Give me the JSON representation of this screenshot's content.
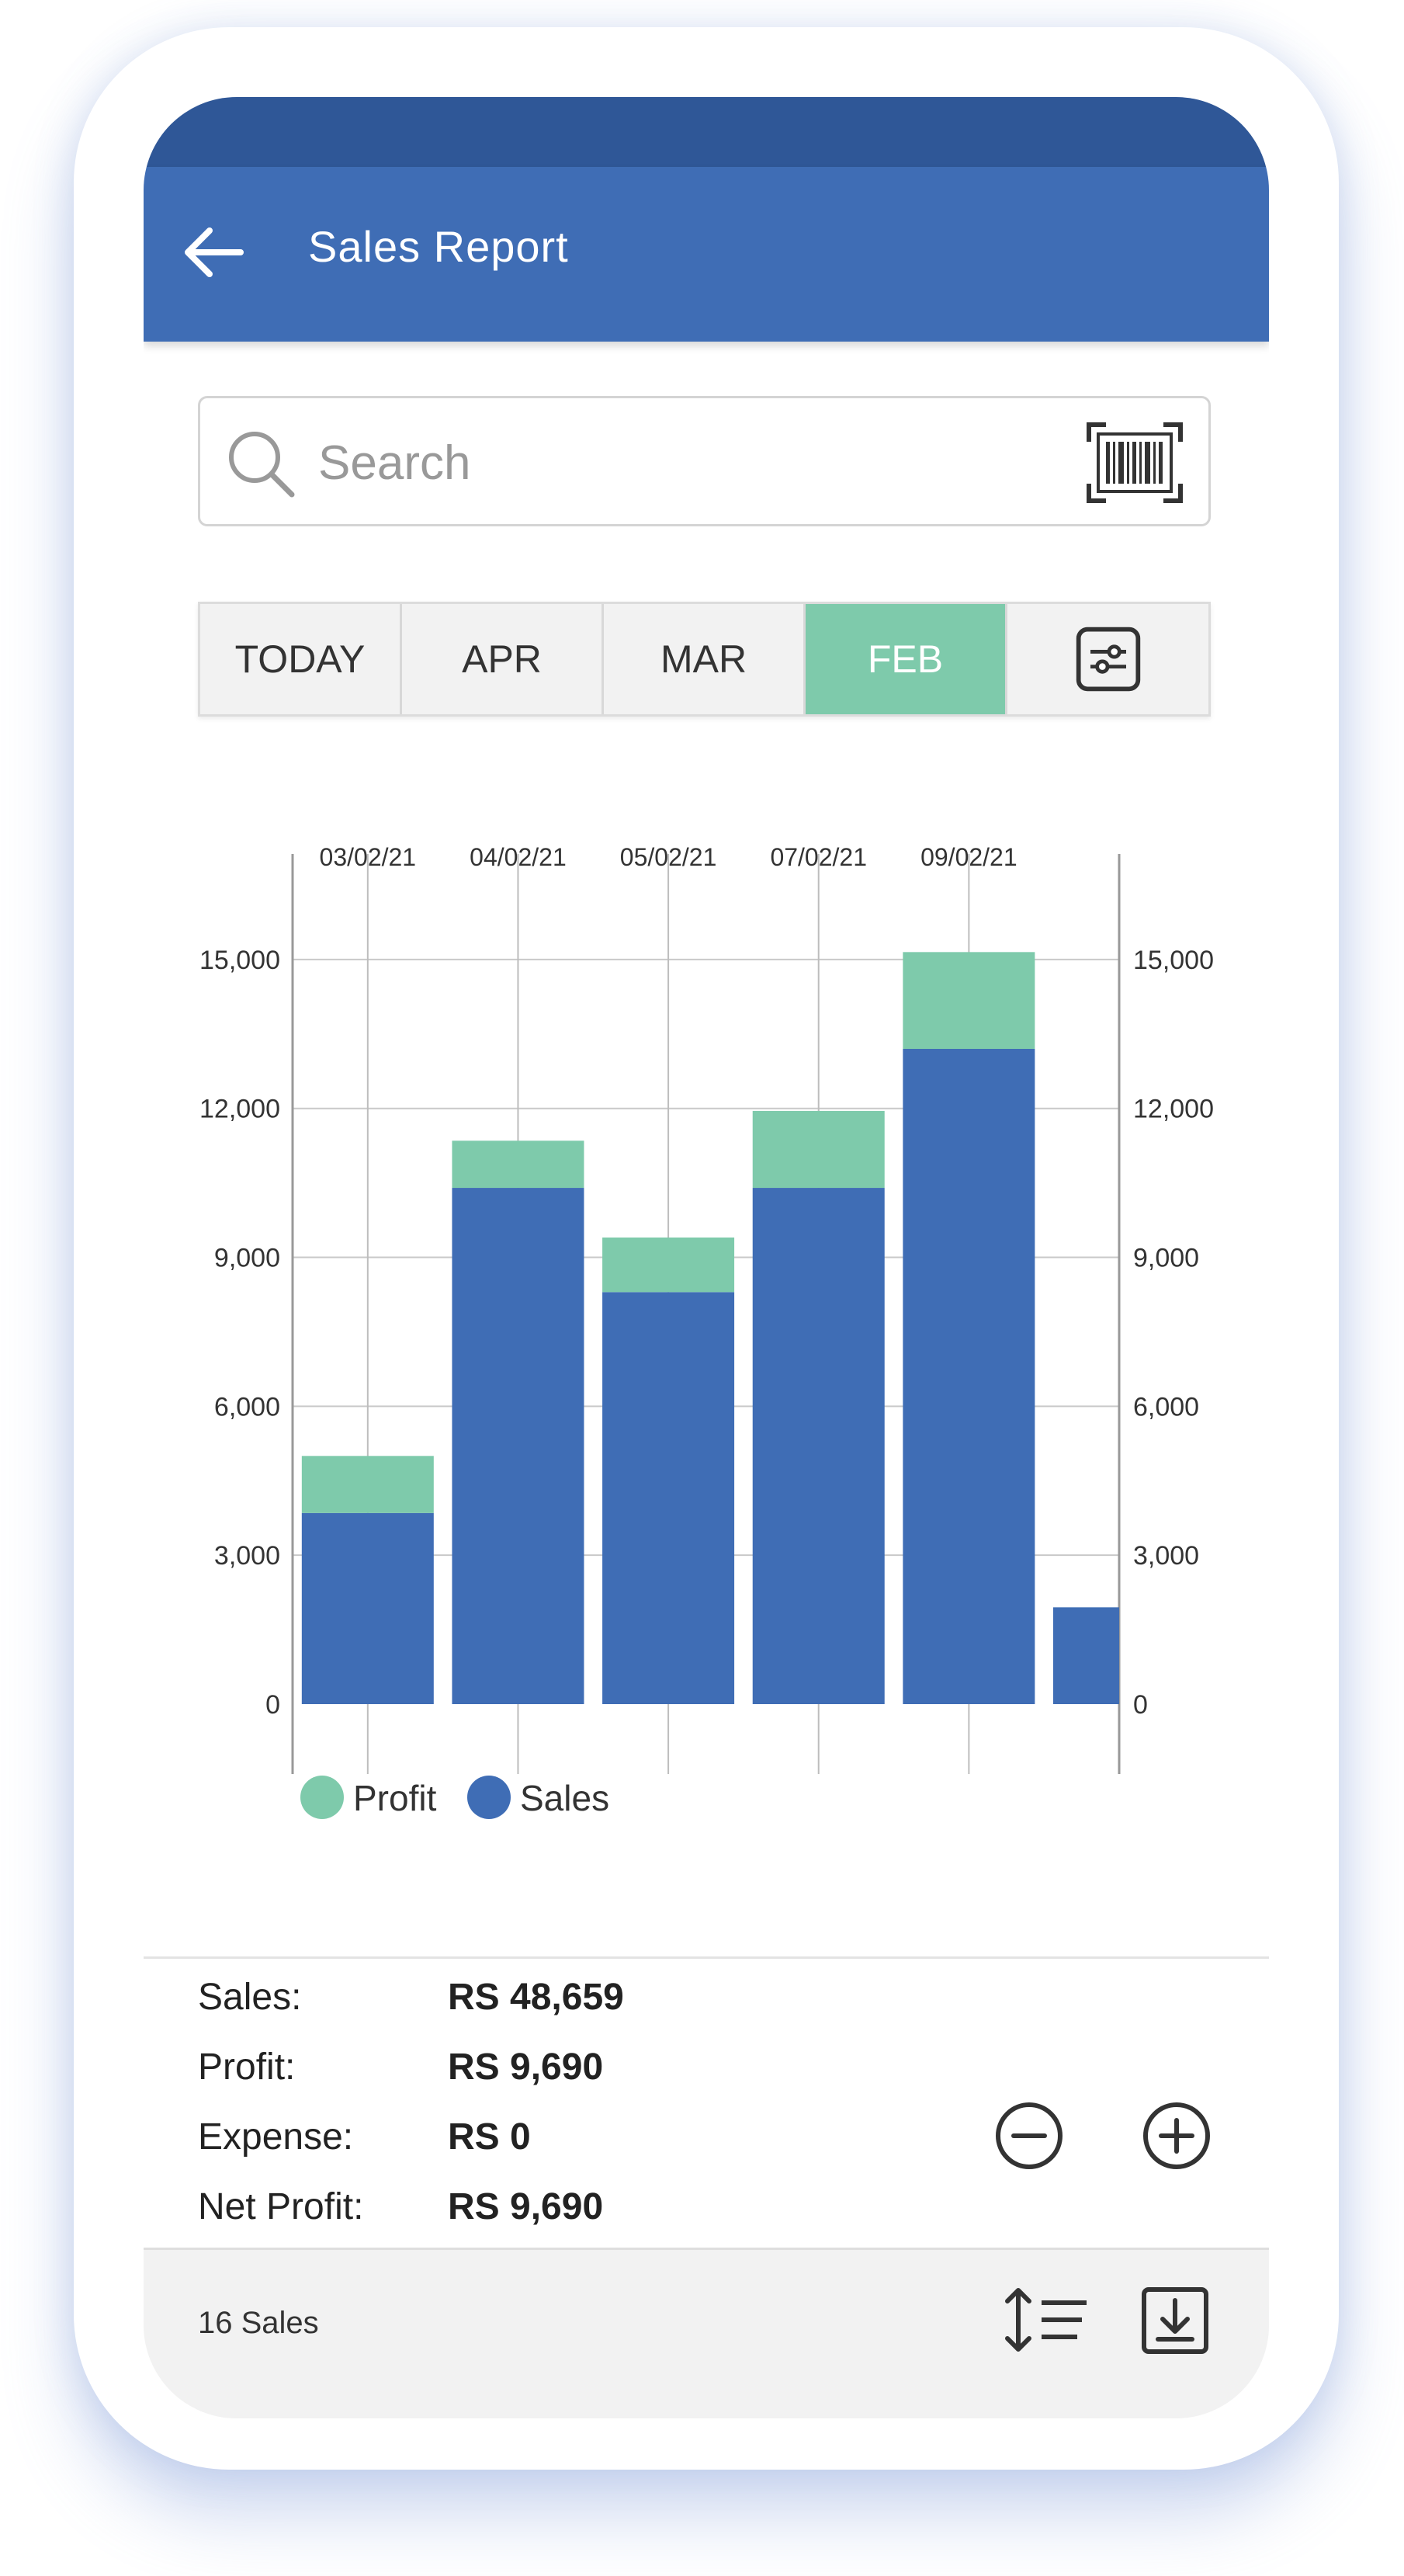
{
  "header": {
    "title": "Sales Report"
  },
  "search": {
    "placeholder": "Search"
  },
  "tabs": [
    {
      "label": "TODAY",
      "active": false
    },
    {
      "label": "APR",
      "active": false
    },
    {
      "label": "MAR",
      "active": false
    },
    {
      "label": "FEB",
      "active": true
    }
  ],
  "colors": {
    "appbar": "#3f6db5",
    "status": "#2f5797",
    "profit": "#7ecaab",
    "sales": "#3f6db5"
  },
  "icons": {
    "back": "arrow-left-icon",
    "search": "search-icon",
    "barcode": "barcode-scan-icon",
    "filter": "sliders-icon",
    "zoom_out": "zoom-out-icon",
    "zoom_in": "zoom-in-icon",
    "sort": "sort-icon",
    "download": "download-icon"
  },
  "chart_data": {
    "type": "bar",
    "stacked": true,
    "categories": [
      "03/02/21",
      "04/02/21",
      "05/02/21",
      "07/02/21",
      "09/02/21",
      ""
    ],
    "series": [
      {
        "name": "Sales",
        "values": [
          3850,
          10400,
          8300,
          10400,
          13200,
          1950
        ]
      },
      {
        "name": "Profit",
        "values": [
          1150,
          950,
          1100,
          1550,
          1950,
          0
        ]
      }
    ],
    "ylim": [
      0,
      16500
    ],
    "yticks": [
      0,
      3000,
      6000,
      9000,
      12000,
      15000
    ],
    "ytick_labels": [
      "0",
      "3,000",
      "6,000",
      "9,000",
      "12,000",
      "15,000"
    ],
    "dual_y_axis": true,
    "grid": true,
    "legend_placement": "bottom-left",
    "legend": [
      "Profit",
      "Sales"
    ]
  },
  "summary": {
    "rows": [
      {
        "label": "Sales:",
        "value": "RS 48,659"
      },
      {
        "label": "Profit:",
        "value": "RS 9,690"
      },
      {
        "label": "Expense:",
        "value": "RS 0"
      },
      {
        "label": "Net Profit:",
        "value": "RS 9,690"
      }
    ]
  },
  "footer": {
    "count_label": "16 Sales"
  }
}
